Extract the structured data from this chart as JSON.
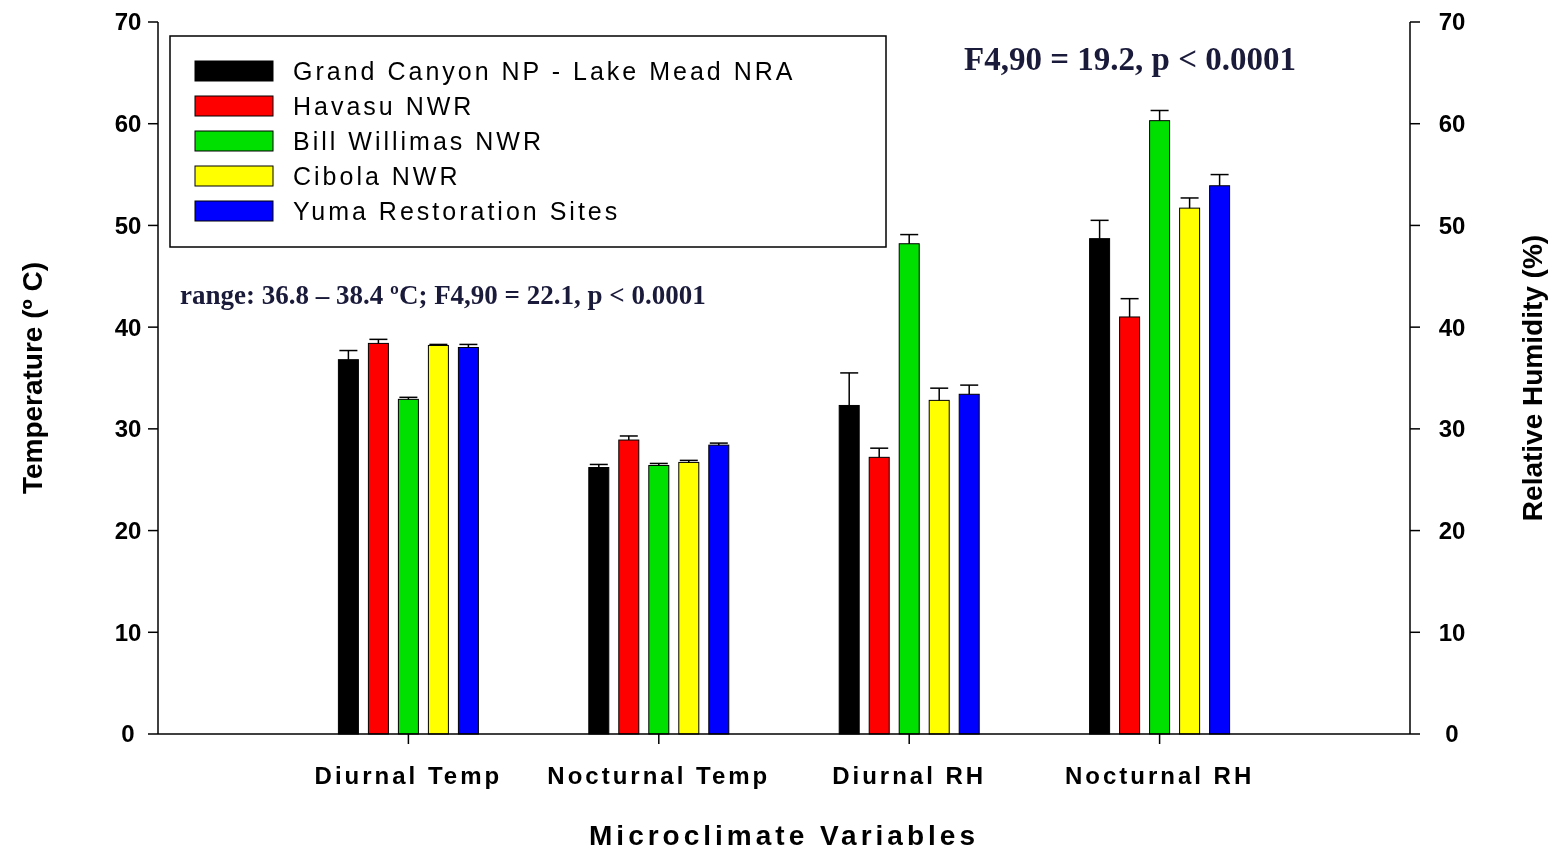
{
  "chart_data": {
    "type": "bar",
    "xlabel": "Microclimate Variables",
    "ylabel": "Temperature (º C)",
    "y2label": "Relative Humidity (%)",
    "categories": [
      "Diurnal Temp",
      "Nocturnal Temp",
      "Diurnal RH",
      "Nocturnal RH"
    ],
    "series": [
      {
        "name": "Grand Canyon NP - Lake Mead NRA",
        "color": "#000000",
        "values": [
          36.8,
          26.2,
          32.3,
          48.7
        ],
        "errors": [
          [
            36.8,
            37.7
          ],
          [
            26.2,
            26.5
          ],
          [
            32.3,
            35.5
          ],
          [
            48.7,
            50.5
          ]
        ]
      },
      {
        "name": "Havasu NWR",
        "color": "#ff0000",
        "values": [
          38.4,
          28.9,
          27.2,
          41.0
        ],
        "errors": [
          [
            38.4,
            38.8
          ],
          [
            28.9,
            29.3
          ],
          [
            27.2,
            28.1
          ],
          [
            41.0,
            42.8
          ]
        ]
      },
      {
        "name": "Bill Willimas NWR",
        "color": "#00e000",
        "values": [
          32.9,
          26.4,
          48.2,
          60.3
        ],
        "errors": [
          [
            32.9,
            33.1
          ],
          [
            26.4,
            26.6
          ],
          [
            48.2,
            49.1
          ],
          [
            60.3,
            61.3
          ]
        ]
      },
      {
        "name": "Cibola NWR",
        "color": "#ffff00",
        "values": [
          38.2,
          26.7,
          32.8,
          51.7
        ],
        "errors": [
          [
            38.2,
            38.3
          ],
          [
            26.7,
            26.9
          ],
          [
            32.8,
            34.0
          ],
          [
            51.7,
            52.7
          ]
        ]
      },
      {
        "name": "Yuma Restoration Sites",
        "color": "#0000ff",
        "values": [
          38.0,
          28.4,
          33.4,
          53.9
        ],
        "errors": [
          [
            38.0,
            38.3
          ],
          [
            28.4,
            28.6
          ],
          [
            33.4,
            34.3
          ],
          [
            53.9,
            55.0
          ]
        ]
      }
    ],
    "ylim": [
      0,
      70
    ],
    "yticks": [
      0,
      10,
      20,
      30,
      40,
      50,
      60,
      70
    ],
    "y2lim": [
      0,
      70
    ],
    "y2ticks": [
      0,
      10,
      20,
      30,
      40,
      50,
      60,
      70
    ],
    "annotations": [
      "F4,90 = 19.2, p < 0.0001",
      "range: 36.8 – 38.4 ºC; F4,90 = 22.1, p < 0.0001"
    ],
    "legend": "top left",
    "grid": false
  }
}
